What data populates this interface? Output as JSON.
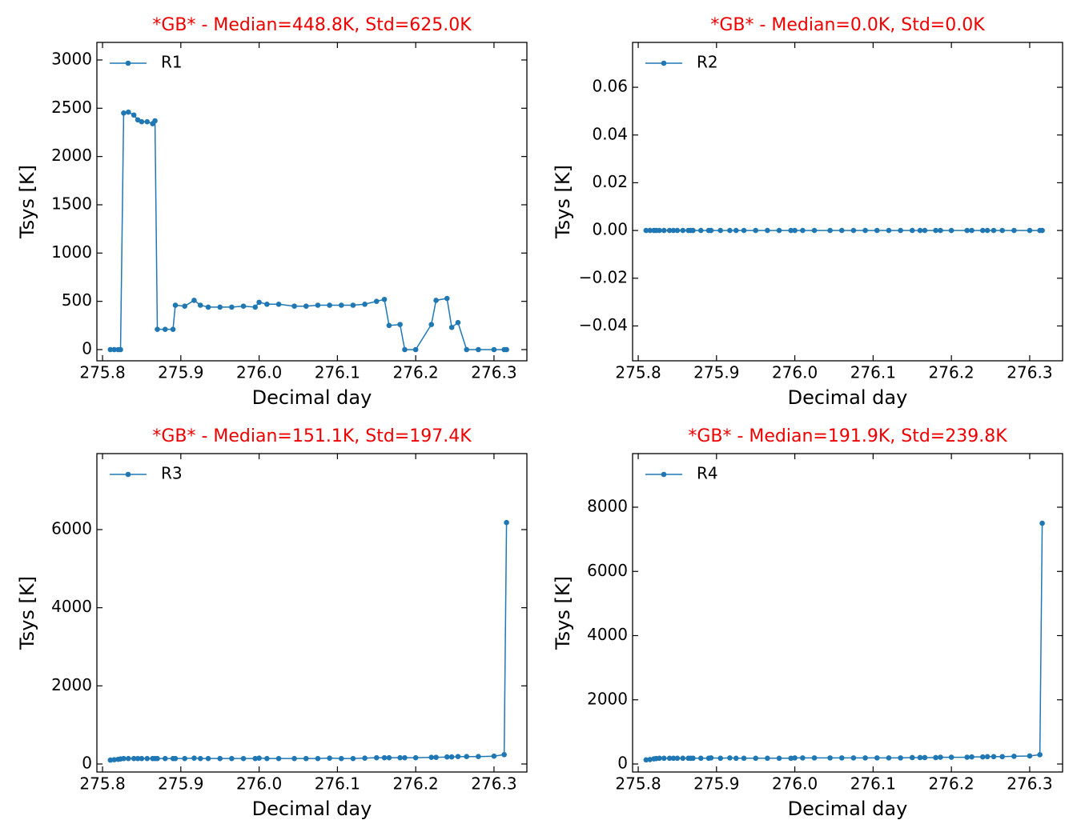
{
  "chart_data": [
    {
      "type": "line",
      "title": "*GB* - Median=448.8K, Std=625.0K",
      "xlabel": "Decimal day",
      "ylabel": "Tsys [K]",
      "x": [
        275.81,
        275.815,
        275.82,
        275.823,
        275.827,
        275.833,
        275.84,
        275.845,
        275.85,
        275.857,
        275.864,
        275.867,
        275.87,
        275.88,
        275.89,
        275.893,
        275.905,
        275.917,
        275.925,
        275.935,
        275.95,
        275.965,
        275.98,
        275.995,
        276.0,
        276.01,
        276.025,
        276.045,
        276.06,
        276.075,
        276.09,
        276.105,
        276.12,
        276.135,
        276.15,
        276.16,
        276.166,
        276.18,
        276.186,
        276.2,
        276.22,
        276.226,
        276.24,
        276.246,
        276.254,
        276.265,
        276.28,
        276.3,
        276.313,
        276.316
      ],
      "series": [
        {
          "name": "R1",
          "color": "#1f77b4",
          "values": [
            0,
            0,
            0,
            0,
            2450,
            2460,
            2430,
            2380,
            2360,
            2360,
            2340,
            2370,
            210,
            210,
            210,
            460,
            450,
            510,
            460,
            440,
            440,
            440,
            450,
            440,
            490,
            470,
            470,
            450,
            450,
            460,
            460,
            460,
            460,
            470,
            500,
            520,
            250,
            260,
            0,
            0,
            260,
            510,
            530,
            230,
            280,
            0,
            0,
            0,
            0,
            0
          ]
        }
      ],
      "xlim": [
        275.7928,
        276.342
      ],
      "ylim": [
        -116,
        3182
      ],
      "xticks": [
        275.8,
        275.9,
        {
          "value": 276,
          "label": "276.0"
        },
        276.1,
        276.2,
        276.3
      ],
      "yticks": [
        0,
        500,
        1000,
        1500,
        2000,
        2500,
        3000
      ],
      "legend": "upper left",
      "grid": false
    },
    {
      "type": "line",
      "title": "*GB* - Median=0.0K, Std=0.0K",
      "xlabel": "Decimal day",
      "ylabel": "Tsys [K]",
      "x": [
        275.81,
        275.815,
        275.82,
        275.823,
        275.827,
        275.833,
        275.84,
        275.845,
        275.85,
        275.857,
        275.864,
        275.867,
        275.87,
        275.88,
        275.89,
        275.893,
        275.905,
        275.917,
        275.925,
        275.935,
        275.95,
        275.965,
        275.98,
        275.995,
        276.0,
        276.01,
        276.025,
        276.045,
        276.06,
        276.075,
        276.09,
        276.105,
        276.12,
        276.135,
        276.15,
        276.16,
        276.166,
        276.18,
        276.186,
        276.2,
        276.22,
        276.226,
        276.24,
        276.246,
        276.254,
        276.265,
        276.28,
        276.3,
        276.313,
        276.316
      ],
      "series": [
        {
          "name": "R2",
          "color": "#1f77b4",
          "values": [
            0,
            0,
            0,
            0,
            0,
            0,
            0,
            0,
            0,
            0,
            0,
            0,
            0,
            0,
            0,
            0,
            0,
            0,
            0,
            0,
            0,
            0,
            0,
            0,
            0,
            0,
            0,
            0,
            0,
            0,
            0,
            0,
            0,
            0,
            0,
            0,
            0,
            0,
            0,
            0,
            0,
            0,
            0,
            0,
            0,
            0,
            0,
            0,
            0,
            0
          ]
        }
      ],
      "xlim": [
        275.7928,
        276.342
      ],
      "ylim": [
        -0.0546,
        0.0788
      ],
      "xticks": [
        275.8,
        275.9,
        {
          "value": 276,
          "label": "276.0"
        },
        276.1,
        276.2,
        276.3
      ],
      "yticks": [
        {
          "value": -0.04,
          "label": "−0.04"
        },
        {
          "value": -0.02,
          "label": "−0.02"
        },
        {
          "value": 0,
          "label": "0.00"
        },
        0.02,
        0.04,
        0.06
      ],
      "legend": "upper left",
      "grid": false
    },
    {
      "type": "line",
      "title": "*GB* - Median=151.1K, Std=197.4K",
      "xlabel": "Decimal day",
      "ylabel": "Tsys [K]",
      "x": [
        275.81,
        275.815,
        275.82,
        275.823,
        275.827,
        275.833,
        275.84,
        275.845,
        275.85,
        275.857,
        275.864,
        275.867,
        275.87,
        275.88,
        275.89,
        275.893,
        275.905,
        275.917,
        275.925,
        275.935,
        275.95,
        275.965,
        275.98,
        275.995,
        276.0,
        276.01,
        276.025,
        276.045,
        276.06,
        276.075,
        276.09,
        276.105,
        276.12,
        276.135,
        276.15,
        276.16,
        276.166,
        276.18,
        276.186,
        276.2,
        276.22,
        276.226,
        276.24,
        276.246,
        276.254,
        276.265,
        276.28,
        276.3,
        276.313,
        276.316
      ],
      "series": [
        {
          "name": "R3",
          "color": "#1f77b4",
          "values": [
            100,
            110,
            120,
            130,
            140,
            140,
            140,
            140,
            140,
            140,
            140,
            140,
            140,
            140,
            140,
            140,
            140,
            150,
            140,
            140,
            140,
            140,
            140,
            140,
            150,
            140,
            140,
            140,
            140,
            140,
            150,
            140,
            140,
            150,
            160,
            160,
            160,
            160,
            160,
            160,
            170,
            170,
            180,
            180,
            190,
            190,
            190,
            200,
            240,
            6180
          ]
        }
      ],
      "xlim": [
        275.7928,
        276.342
      ],
      "ylim": [
        -205,
        7945
      ],
      "xticks": [
        275.8,
        275.9,
        {
          "value": 276,
          "label": "276.0"
        },
        276.1,
        276.2,
        276.3
      ],
      "yticks": [
        0,
        2000,
        4000,
        6000
      ],
      "legend": "upper left",
      "grid": false
    },
    {
      "type": "line",
      "title": "*GB* - Median=191.9K, Std=239.8K",
      "xlabel": "Decimal day",
      "ylabel": "Tsys [K]",
      "x": [
        275.81,
        275.815,
        275.82,
        275.823,
        275.827,
        275.833,
        275.84,
        275.845,
        275.85,
        275.857,
        275.864,
        275.867,
        275.87,
        275.88,
        275.89,
        275.893,
        275.905,
        275.917,
        275.925,
        275.935,
        275.95,
        275.965,
        275.98,
        275.995,
        276.0,
        276.01,
        276.025,
        276.045,
        276.06,
        276.075,
        276.09,
        276.105,
        276.12,
        276.135,
        276.15,
        276.16,
        276.166,
        276.18,
        276.186,
        276.2,
        276.22,
        276.226,
        276.24,
        276.246,
        276.254,
        276.265,
        276.28,
        276.3,
        276.313,
        276.316
      ],
      "series": [
        {
          "name": "R4",
          "color": "#1f77b4",
          "values": [
            130,
            140,
            160,
            170,
            180,
            180,
            180,
            180,
            180,
            180,
            180,
            180,
            180,
            180,
            180,
            190,
            180,
            190,
            180,
            180,
            180,
            180,
            180,
            180,
            190,
            190,
            190,
            190,
            190,
            190,
            190,
            190,
            190,
            190,
            200,
            200,
            200,
            200,
            210,
            210,
            210,
            220,
            220,
            230,
            230,
            230,
            240,
            250,
            290,
            7500
          ]
        }
      ],
      "xlim": [
        275.7928,
        276.342
      ],
      "ylim": [
        -249,
        9670
      ],
      "xticks": [
        275.8,
        275.9,
        {
          "value": 276,
          "label": "276.0"
        },
        276.1,
        276.2,
        276.3
      ],
      "yticks": [
        0,
        2000,
        4000,
        6000,
        8000
      ],
      "legend": "upper left",
      "grid": false
    }
  ]
}
